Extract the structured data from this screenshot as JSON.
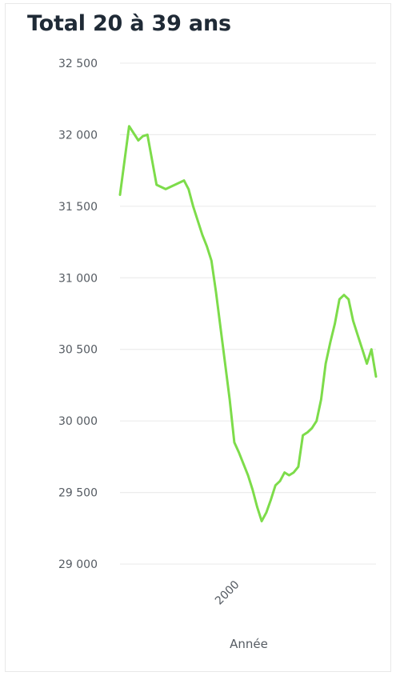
{
  "chart_data": {
    "type": "line",
    "title": "Total 20 à 39 ans",
    "xlabel": "Année",
    "ylabel": "",
    "x_ticks": [
      {
        "value": 2000,
        "label": "2000"
      }
    ],
    "y_ticks": [
      {
        "value": 32500,
        "label": "32 500"
      },
      {
        "value": 32000,
        "label": "32 000"
      },
      {
        "value": 31500,
        "label": "31 500"
      },
      {
        "value": 31000,
        "label": "31 000"
      },
      {
        "value": 30500,
        "label": "30 500"
      },
      {
        "value": 30000,
        "label": "30 000"
      },
      {
        "value": 29500,
        "label": "29 500"
      },
      {
        "value": 29000,
        "label": "29 000"
      }
    ],
    "ylim": [
      28950,
      32550
    ],
    "xlim": [
      1988,
      2016
    ],
    "grid": true,
    "color": "#7ddc4a",
    "series": [
      {
        "name": "",
        "x": [
          1988,
          1988.5,
          1989,
          1990,
          1990.5,
          1991,
          1992,
          1993,
          1994,
          1995,
          1995.5,
          1996,
          1997,
          1997.5,
          1998,
          1998.5,
          1999,
          1999.5,
          2000,
          2000.5,
          2001,
          2001.5,
          2002,
          2002.5,
          2003,
          2003.5,
          2004,
          2004.5,
          2005,
          2005.5,
          2006,
          2006.5,
          2007,
          2007.5,
          2008,
          2008.5,
          2009,
          2009.5,
          2010,
          2010.5,
          2011,
          2011.5,
          2012,
          2012.5,
          2013,
          2013.5,
          2014,
          2014.5,
          2015,
          2015.5,
          2016
        ],
        "y": [
          31580,
          31820,
          32060,
          31960,
          31990,
          32000,
          31650,
          31620,
          31650,
          31680,
          31620,
          31500,
          31300,
          31220,
          31120,
          30900,
          30650,
          30400,
          30150,
          29850,
          29780,
          29700,
          29620,
          29520,
          29400,
          29300,
          29360,
          29450,
          29550,
          29580,
          29640,
          29620,
          29640,
          29680,
          29900,
          29920,
          29950,
          30000,
          30150,
          30400,
          30550,
          30680,
          30850,
          30880,
          30850,
          30700,
          30600,
          30500,
          30400,
          30500,
          30310
        ]
      }
    ]
  }
}
